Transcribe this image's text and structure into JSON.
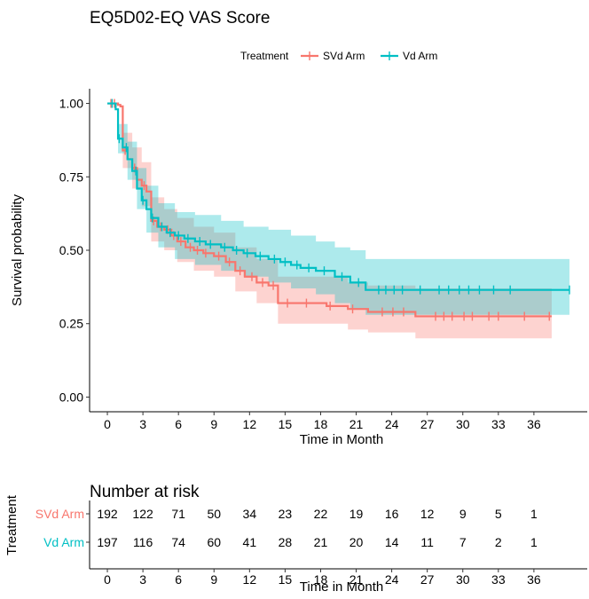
{
  "chart_data": [
    {
      "type": "line",
      "subtype": "kaplan-meier",
      "title": "EQ5D02-EQ VAS Score",
      "xlabel": "Time in Month",
      "ylabel": "Survival probability",
      "xlim": [
        -1.5,
        40.5
      ],
      "ylim": [
        -0.05,
        1.05
      ],
      "x_ticks": [
        0,
        3,
        6,
        9,
        12,
        15,
        18,
        21,
        24,
        27,
        30,
        33,
        36
      ],
      "y_ticks": [
        0.0,
        0.25,
        0.5,
        0.75,
        1.0
      ],
      "y_tick_labels": [
        "0.00",
        "0.25",
        "0.50",
        "0.75",
        "1.00"
      ],
      "grid": false,
      "legend": {
        "title": "Treatment",
        "placement": "top-right"
      },
      "series": [
        {
          "name": "SVd Arm",
          "color": "#F8766D",
          "ci_color": "#F8766D",
          "steps": [
            [
              0,
              1.0
            ],
            [
              0.9,
              0.995
            ],
            [
              1.1,
              0.99
            ],
            [
              1.3,
              0.84
            ],
            [
              1.7,
              0.81
            ],
            [
              2.1,
              0.78
            ],
            [
              2.5,
              0.74
            ],
            [
              2.9,
              0.72
            ],
            [
              3.3,
              0.7
            ],
            [
              3.7,
              0.6
            ],
            [
              4.2,
              0.58
            ],
            [
              4.8,
              0.57
            ],
            [
              5.4,
              0.55
            ],
            [
              5.9,
              0.53
            ],
            [
              6.6,
              0.51
            ],
            [
              7.3,
              0.5
            ],
            [
              8.1,
              0.49
            ],
            [
              9.0,
              0.48
            ],
            [
              10.0,
              0.46
            ],
            [
              10.8,
              0.43
            ],
            [
              11.6,
              0.41
            ],
            [
              12.6,
              0.39
            ],
            [
              13.6,
              0.38
            ],
            [
              14.4,
              0.32
            ],
            [
              18.5,
              0.31
            ],
            [
              20.3,
              0.3
            ],
            [
              22.0,
              0.29
            ],
            [
              26.0,
              0.275
            ],
            [
              37.5,
              0.275
            ]
          ],
          "ci_lower": [
            [
              0,
              1.0
            ],
            [
              1.3,
              0.78
            ],
            [
              2.1,
              0.71
            ],
            [
              2.9,
              0.65
            ],
            [
              3.7,
              0.53
            ],
            [
              4.8,
              0.5
            ],
            [
              5.9,
              0.46
            ],
            [
              7.3,
              0.43
            ],
            [
              9.0,
              0.41
            ],
            [
              10.8,
              0.36
            ],
            [
              12.6,
              0.32
            ],
            [
              14.4,
              0.25
            ],
            [
              20.3,
              0.23
            ],
            [
              22.0,
              0.22
            ],
            [
              26.0,
              0.2
            ],
            [
              37.5,
              0.2
            ]
          ],
          "ci_upper": [
            [
              0,
              1.0
            ],
            [
              1.3,
              0.9
            ],
            [
              2.1,
              0.85
            ],
            [
              2.9,
              0.8
            ],
            [
              3.7,
              0.68
            ],
            [
              4.8,
              0.64
            ],
            [
              5.9,
              0.61
            ],
            [
              7.3,
              0.58
            ],
            [
              9.0,
              0.56
            ],
            [
              10.8,
              0.51
            ],
            [
              12.6,
              0.47
            ],
            [
              14.4,
              0.41
            ],
            [
              20.3,
              0.39
            ],
            [
              22.0,
              0.38
            ],
            [
              26.0,
              0.37
            ],
            [
              37.5,
              0.37
            ]
          ],
          "censor_x": [
            0.3,
            0.6,
            1.5,
            2.3,
            3.1,
            3.9,
            4.5,
            5.1,
            5.6,
            6.2,
            7.0,
            7.6,
            8.3,
            9.4,
            10.3,
            11.2,
            12.2,
            13.1,
            14.0,
            15.2,
            16.8,
            18.8,
            20.7,
            23.2,
            24.1,
            25.0,
            27.7,
            28.4,
            29.1,
            30.1,
            30.8,
            32.2,
            33.0,
            35.2,
            37.3
          ]
        },
        {
          "name": "Vd Arm",
          "color": "#00BFC4",
          "ci_color": "#00BFC4",
          "steps": [
            [
              0,
              1.0
            ],
            [
              0.7,
              0.98
            ],
            [
              0.9,
              0.88
            ],
            [
              1.3,
              0.85
            ],
            [
              1.7,
              0.81
            ],
            [
              2.1,
              0.77
            ],
            [
              2.5,
              0.71
            ],
            [
              2.9,
              0.67
            ],
            [
              3.3,
              0.64
            ],
            [
              3.7,
              0.61
            ],
            [
              4.3,
              0.58
            ],
            [
              5.0,
              0.56
            ],
            [
              5.7,
              0.55
            ],
            [
              6.5,
              0.54
            ],
            [
              7.4,
              0.53
            ],
            [
              8.3,
              0.52
            ],
            [
              9.6,
              0.51
            ],
            [
              10.6,
              0.5
            ],
            [
              11.5,
              0.49
            ],
            [
              12.5,
              0.48
            ],
            [
              13.6,
              0.47
            ],
            [
              14.6,
              0.46
            ],
            [
              15.5,
              0.45
            ],
            [
              16.3,
              0.44
            ],
            [
              17.6,
              0.43
            ],
            [
              19.2,
              0.41
            ],
            [
              20.5,
              0.39
            ],
            [
              21.8,
              0.365
            ],
            [
              39.0,
              0.365
            ]
          ],
          "ci_lower": [
            [
              0,
              1.0
            ],
            [
              0.9,
              0.83
            ],
            [
              1.7,
              0.74
            ],
            [
              2.5,
              0.64
            ],
            [
              3.3,
              0.56
            ],
            [
              4.3,
              0.51
            ],
            [
              5.7,
              0.47
            ],
            [
              7.4,
              0.45
            ],
            [
              9.6,
              0.43
            ],
            [
              11.5,
              0.41
            ],
            [
              13.6,
              0.39
            ],
            [
              15.5,
              0.37
            ],
            [
              17.6,
              0.35
            ],
            [
              19.2,
              0.32
            ],
            [
              20.5,
              0.3
            ],
            [
              21.8,
              0.28
            ],
            [
              39.0,
              0.28
            ]
          ],
          "ci_upper": [
            [
              0,
              1.0
            ],
            [
              0.9,
              0.93
            ],
            [
              1.7,
              0.87
            ],
            [
              2.5,
              0.78
            ],
            [
              3.3,
              0.72
            ],
            [
              4.3,
              0.66
            ],
            [
              5.7,
              0.63
            ],
            [
              7.4,
              0.62
            ],
            [
              9.6,
              0.6
            ],
            [
              11.5,
              0.58
            ],
            [
              13.6,
              0.57
            ],
            [
              15.5,
              0.55
            ],
            [
              17.6,
              0.53
            ],
            [
              19.2,
              0.51
            ],
            [
              20.5,
              0.5
            ],
            [
              21.8,
              0.47
            ],
            [
              39.0,
              0.47
            ]
          ],
          "censor_x": [
            0.4,
            1.0,
            1.6,
            2.4,
            3.0,
            3.8,
            4.6,
            5.3,
            6.0,
            6.8,
            7.8,
            8.7,
            9.9,
            10.9,
            11.8,
            12.9,
            14.1,
            15.0,
            16.0,
            17.0,
            18.3,
            19.8,
            21.2,
            22.9,
            23.5,
            24.2,
            24.9,
            26.4,
            28.0,
            28.8,
            29.7,
            30.5,
            31.4,
            32.6,
            34.0,
            39.0
          ]
        }
      ]
    },
    {
      "type": "table",
      "title": "Number at risk",
      "ylabel": "Treatment",
      "xlabel": "Time in Month",
      "x": [
        0,
        3,
        6,
        9,
        12,
        15,
        18,
        21,
        24,
        27,
        30,
        33,
        36
      ],
      "rows": [
        {
          "name": "SVd Arm",
          "color": "#F8766D",
          "values": [
            "192",
            "122",
            "71",
            "50",
            "34",
            "23",
            "22",
            "19",
            "16",
            "12",
            "9",
            "5",
            "1"
          ]
        },
        {
          "name": "Vd Arm",
          "color": "#00BFC4",
          "values": [
            "197",
            "116",
            "74",
            "60",
            "41",
            "28",
            "21",
            "20",
            "14",
            "11",
            "7",
            "2",
            "1"
          ]
        }
      ]
    }
  ]
}
